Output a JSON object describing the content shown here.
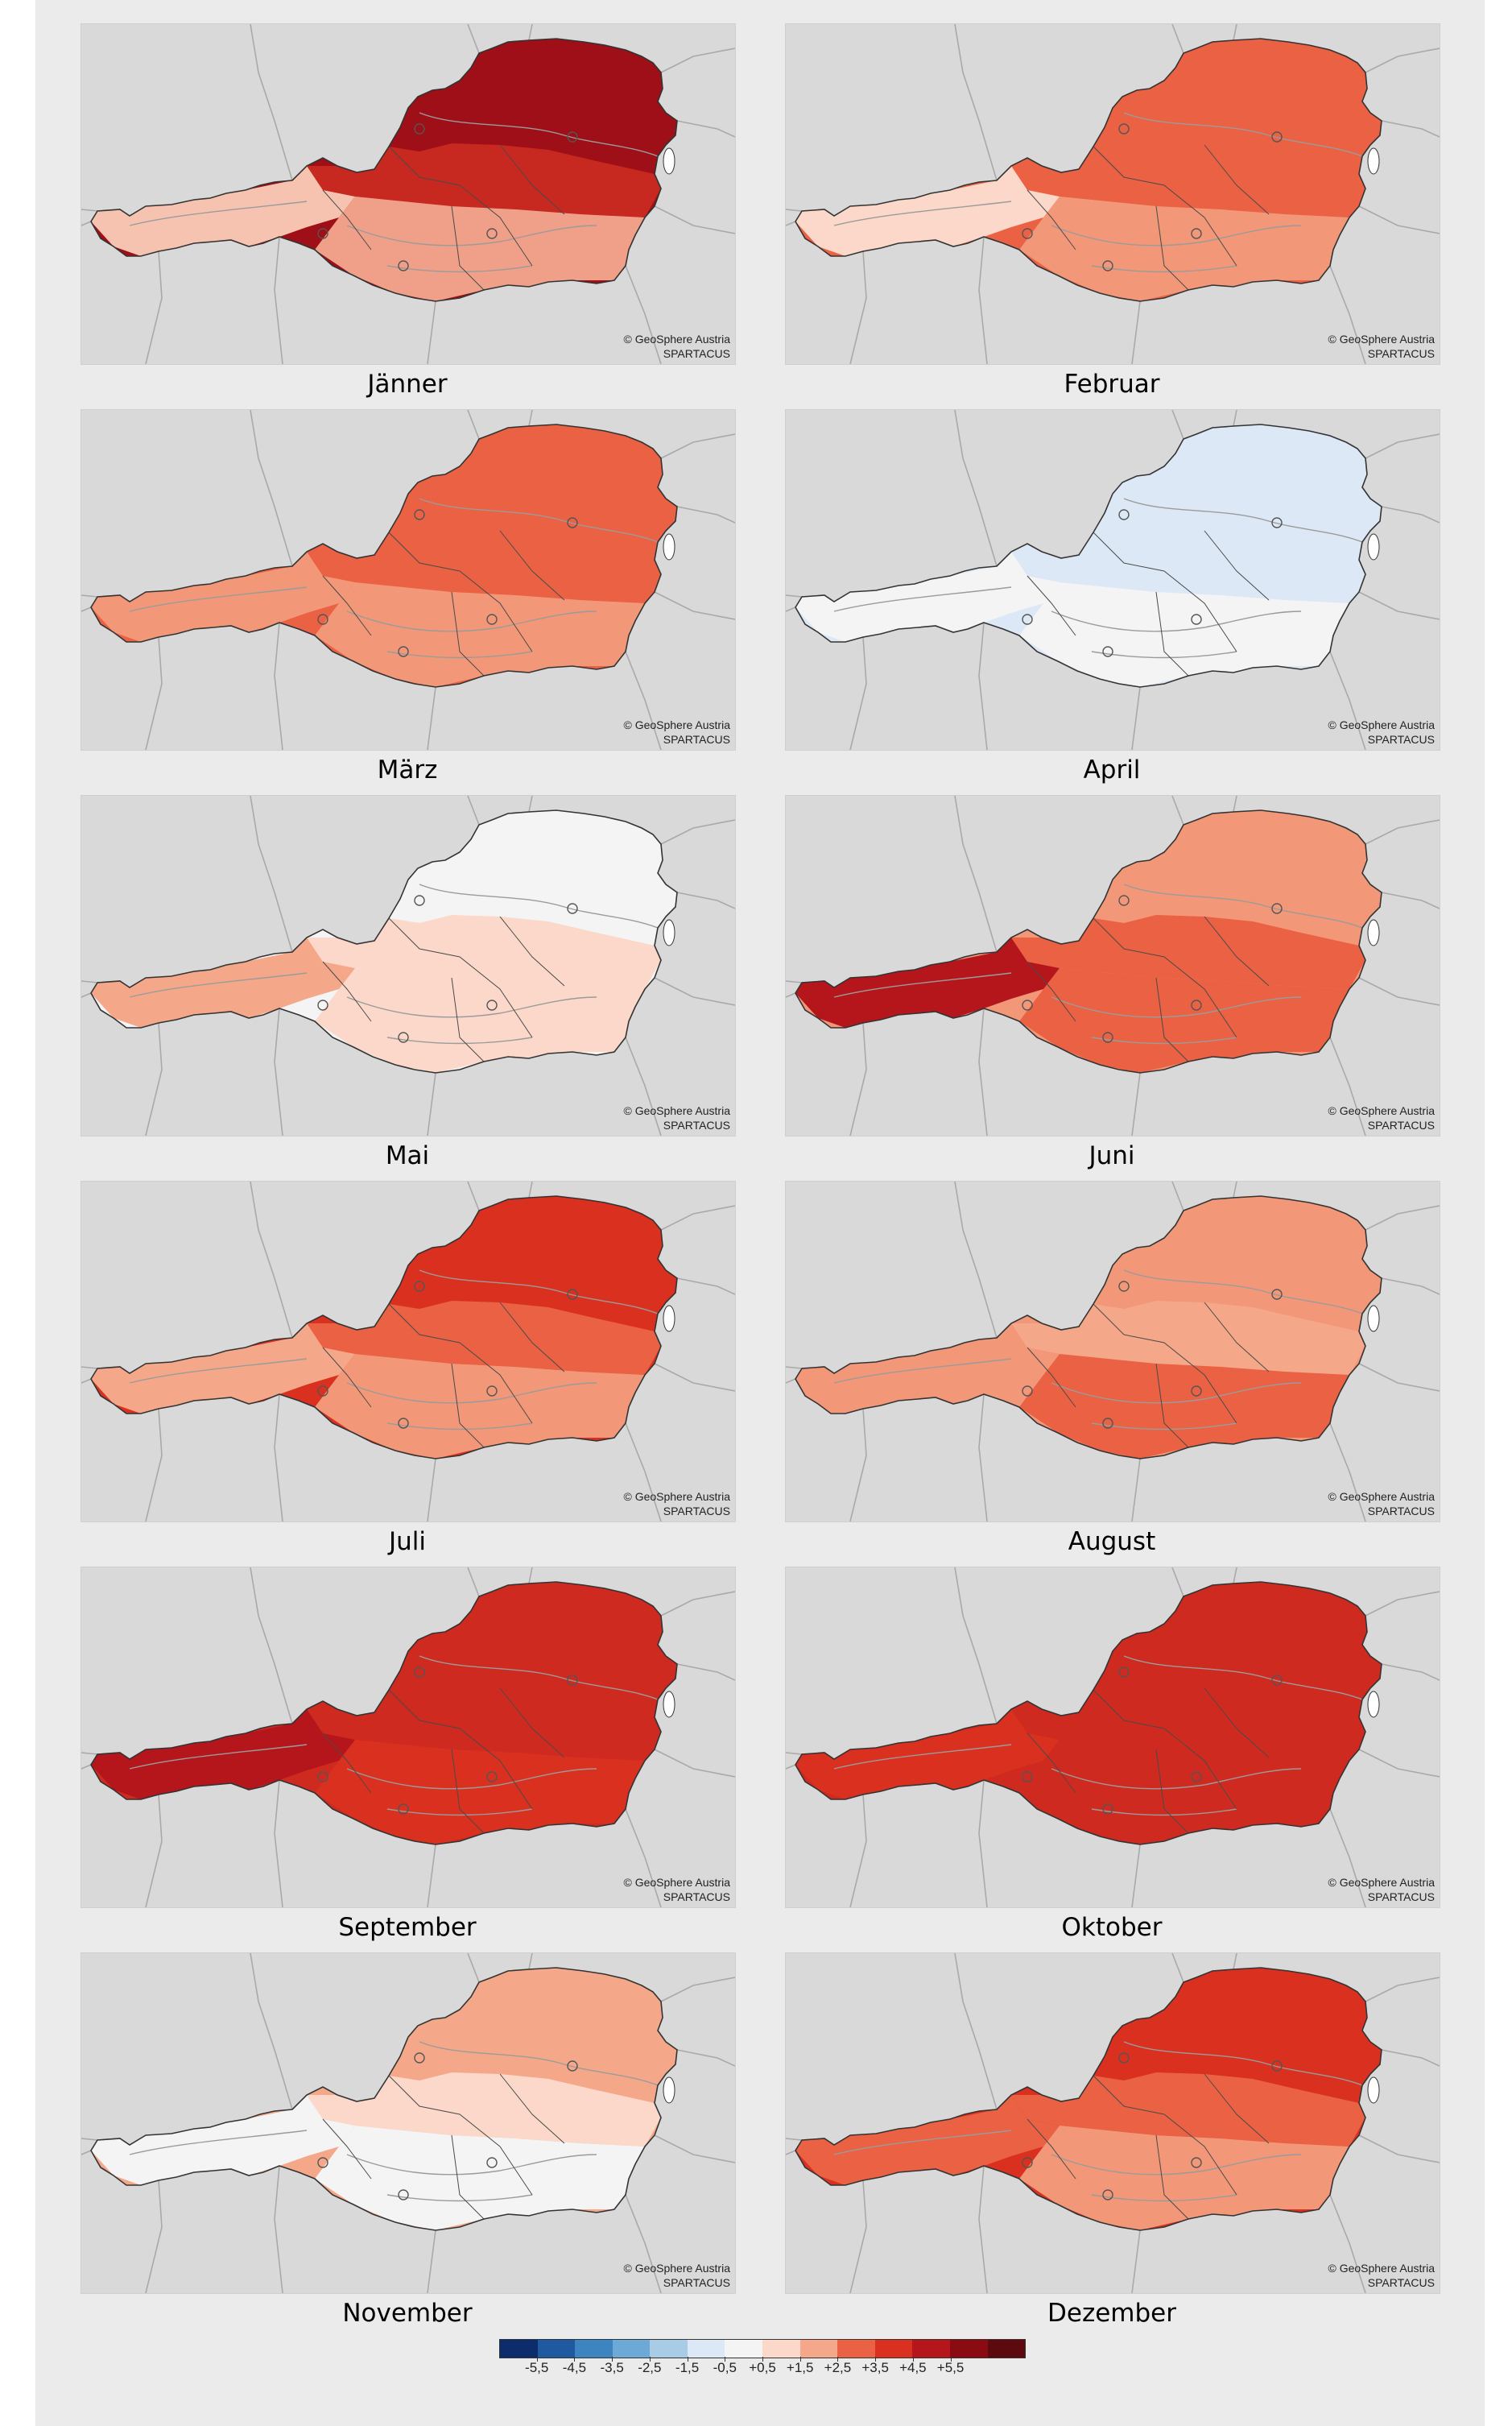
{
  "credit": {
    "line1": "© GeoSphere Austria",
    "line2": "SPARTACUS"
  },
  "months": [
    {
      "label": "Jänner",
      "colors": [
        "#9e0f17",
        "#c7281f",
        "#f0a088",
        "#f7c3b1"
      ]
    },
    {
      "label": "Februar",
      "colors": [
        "#ea6143",
        "#ea6143",
        "#f29778",
        "#fbd8c9"
      ]
    },
    {
      "label": "März",
      "colors": [
        "#ea6143",
        "#ea6143",
        "#f29778",
        "#f29778"
      ]
    },
    {
      "label": "April",
      "colors": [
        "#dce8f5",
        "#dce8f5",
        "#f4f4f4",
        "#f4f4f4"
      ]
    },
    {
      "label": "Mai",
      "colors": [
        "#f4f4f4",
        "#fbd8c9",
        "#fbd8c9",
        "#f4a889"
      ]
    },
    {
      "label": "Juni",
      "colors": [
        "#f29778",
        "#ea6143",
        "#ea6143",
        "#b5161c"
      ]
    },
    {
      "label": "Juli",
      "colors": [
        "#d9301f",
        "#ea6143",
        "#f29778",
        "#f4a889"
      ]
    },
    {
      "label": "August",
      "colors": [
        "#f29778",
        "#f4a889",
        "#ea6143",
        "#f29778"
      ]
    },
    {
      "label": "September",
      "colors": [
        "#cf2a20",
        "#cf2a20",
        "#d9301f",
        "#b5161c"
      ]
    },
    {
      "label": "Oktober",
      "colors": [
        "#cf2a20",
        "#cf2a20",
        "#cf2a20",
        "#d9301f"
      ]
    },
    {
      "label": "November",
      "colors": [
        "#f4a889",
        "#fbd8c9",
        "#f4f4f4",
        "#f4f4f4"
      ]
    },
    {
      "label": "Dezember",
      "colors": [
        "#d9301f",
        "#ea6143",
        "#f29778",
        "#ea6143"
      ]
    }
  ],
  "legend": {
    "colors": [
      "#0d2c6b",
      "#1f5aa0",
      "#3d85c0",
      "#6da9d7",
      "#a8cbe6",
      "#dce8f5",
      "#f4f4f4",
      "#fbd8c9",
      "#f4a889",
      "#ea6143",
      "#d9301f",
      "#b5161c",
      "#8a0b12",
      "#5c0a0e"
    ],
    "ticks": [
      "-5,5",
      "-4,5",
      "-3,5",
      "-2,5",
      "-1,5",
      "-0,5",
      "+0,5",
      "+1,5",
      "+2,5",
      "+3,5",
      "+4,5",
      "+5,5"
    ]
  }
}
